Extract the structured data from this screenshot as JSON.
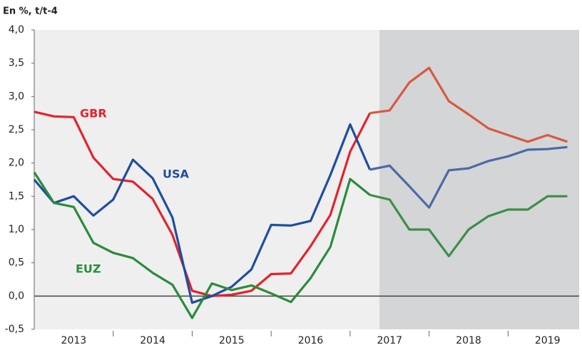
{
  "chart_data": {
    "type": "line",
    "title": "En %, t/t-4",
    "x": [
      2013,
      2013.25,
      2013.5,
      2013.75,
      2014,
      2014.25,
      2014.5,
      2014.75,
      2015,
      2015.25,
      2015.5,
      2015.75,
      2016,
      2016.25,
      2016.5,
      2016.75,
      2017,
      2017.25,
      2017.5,
      2017.75,
      2018,
      2018.25,
      2018.5,
      2018.75,
      2019,
      2019.25,
      2019.5,
      2019.75
    ],
    "series": [
      {
        "name": "GBR",
        "color": "#e3232b",
        "values": [
          2.77,
          2.7,
          2.69,
          2.08,
          1.76,
          1.72,
          1.46,
          0.92,
          0.08,
          0.0,
          0.02,
          0.08,
          0.33,
          0.34,
          0.75,
          1.22,
          2.17,
          2.75,
          null,
          null,
          null,
          null,
          null,
          null,
          null,
          null,
          null,
          null
        ]
      },
      {
        "color": "#d9593f",
        "values": [
          null,
          null,
          null,
          null,
          null,
          null,
          null,
          null,
          null,
          null,
          null,
          null,
          null,
          null,
          null,
          null,
          null,
          2.75,
          2.79,
          3.21,
          3.43,
          2.93,
          2.73,
          2.52,
          2.42,
          2.32,
          2.42,
          2.32
        ]
      },
      {
        "name": "USA",
        "color": "#1f4e9e",
        "values": [
          1.75,
          1.4,
          1.5,
          1.21,
          1.45,
          2.05,
          1.77,
          1.18,
          -0.1,
          0.0,
          0.14,
          0.4,
          1.07,
          1.06,
          1.13,
          1.82,
          2.58,
          1.9,
          null,
          null,
          null,
          null,
          null,
          null,
          null,
          null,
          null,
          null
        ]
      },
      {
        "color": "#4a6aa8",
        "values": [
          null,
          null,
          null,
          null,
          null,
          null,
          null,
          null,
          null,
          null,
          null,
          null,
          null,
          null,
          null,
          null,
          null,
          1.9,
          1.96,
          1.65,
          1.33,
          1.89,
          1.92,
          2.03,
          2.1,
          2.2,
          2.21,
          2.24
        ]
      },
      {
        "name": "EUZ",
        "color": "#2a8c3a",
        "values": [
          1.86,
          1.4,
          1.34,
          0.8,
          0.65,
          0.57,
          0.35,
          0.17,
          -0.33,
          0.19,
          0.09,
          0.16,
          0.04,
          -0.09,
          0.27,
          0.74,
          1.76,
          1.52,
          null,
          null,
          null,
          null,
          null,
          null,
          null,
          null,
          null,
          null
        ]
      },
      {
        "color": "#3e8e47",
        "values": [
          null,
          null,
          null,
          null,
          null,
          null,
          null,
          null,
          null,
          null,
          null,
          null,
          null,
          null,
          null,
          null,
          null,
          1.52,
          1.45,
          1.0,
          1.0,
          0.6,
          1.0,
          1.2,
          1.3,
          1.3,
          1.5,
          1.5
        ]
      }
    ],
    "xlim": [
      2013,
      2019.9
    ],
    "xticks": [
      {
        "value": 2013.5,
        "label": "2013"
      },
      {
        "value": 2014.5,
        "label": "2014"
      },
      {
        "value": 2015.5,
        "label": "2015"
      },
      {
        "value": 2016.5,
        "label": "2016"
      },
      {
        "value": 2017.5,
        "label": "2017"
      },
      {
        "value": 2018.5,
        "label": "2018"
      },
      {
        "value": 2019.5,
        "label": "2019"
      }
    ],
    "ylim": [
      -0.5,
      4
    ],
    "yticks": [
      {
        "value": -0.5,
        "label": "-0,5"
      },
      {
        "value": 0,
        "label": "0,0"
      },
      {
        "value": 0.5,
        "label": "0,5"
      },
      {
        "value": 1,
        "label": "1,0"
      },
      {
        "value": 1.5,
        "label": "1,5"
      },
      {
        "value": 2,
        "label": "2,0"
      },
      {
        "value": 2.5,
        "label": "2,5"
      },
      {
        "value": 3,
        "label": "3,0"
      },
      {
        "value": 3.5,
        "label": "3,5"
      },
      {
        "value": 4,
        "label": "4,0"
      }
    ]
  }
}
